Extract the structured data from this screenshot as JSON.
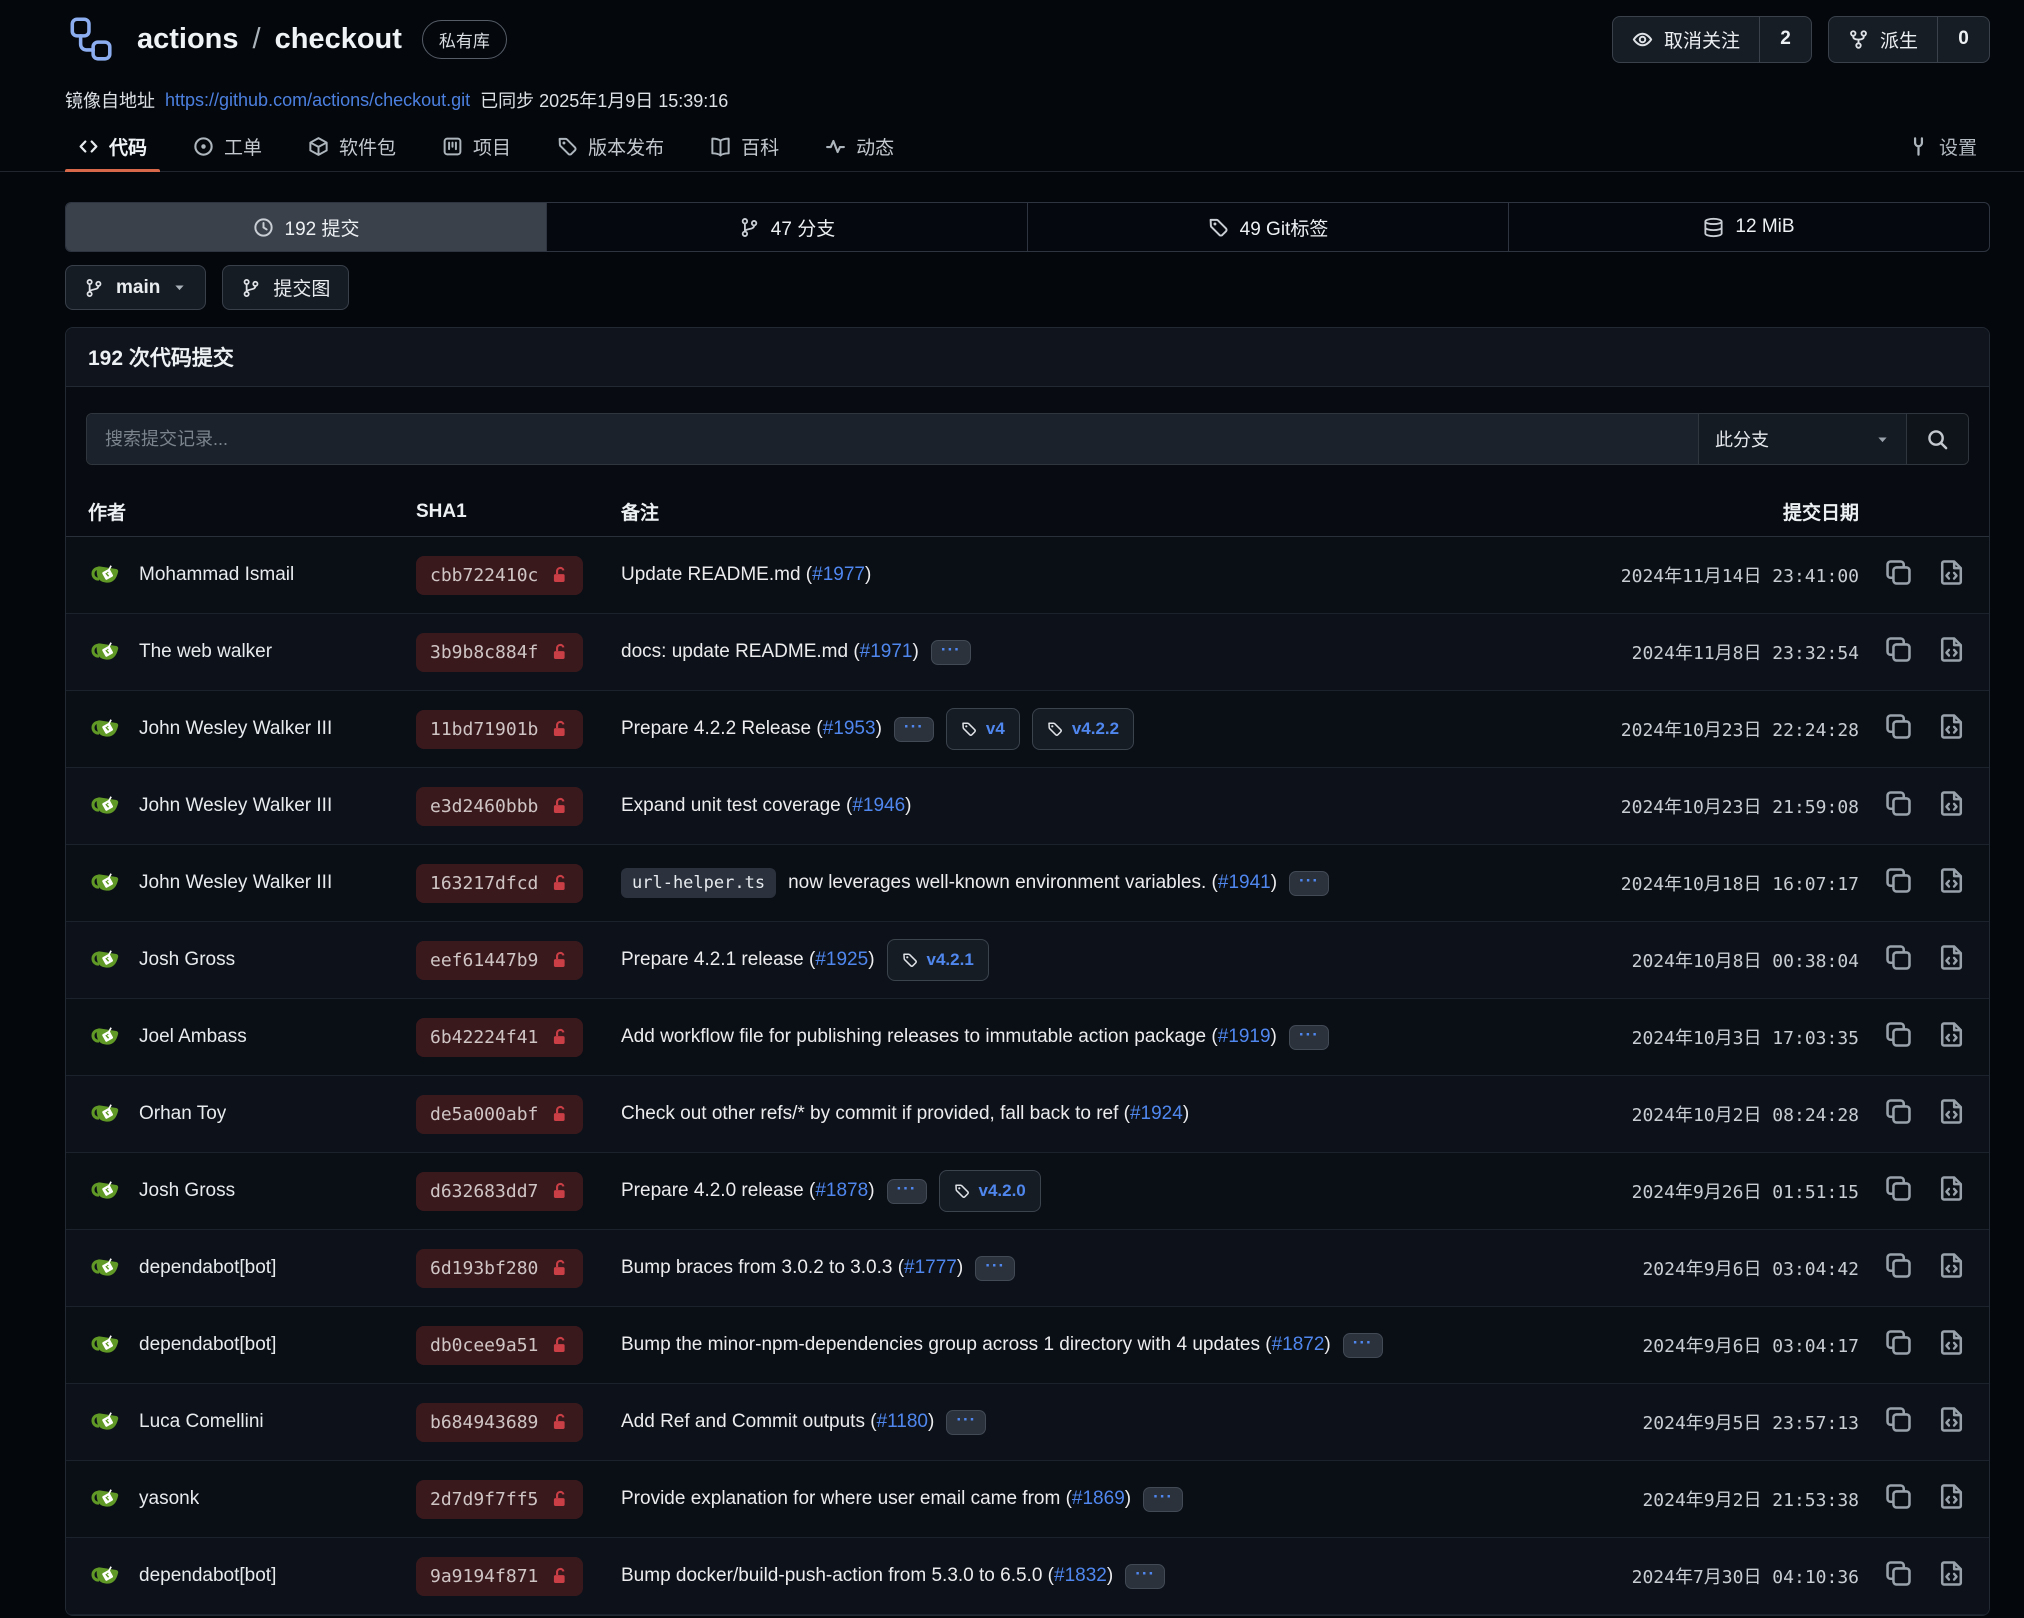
{
  "colors": {
    "accent_underline": "#d8684a",
    "link_blue": "#4f87ef",
    "mirror_link_blue": "#4c80e0",
    "sha_badge_bg": "#3a191d",
    "lock_red": "#ca3f46",
    "avatar_green": "#609926",
    "repo_logo_blue": "#8caef0"
  },
  "header": {
    "repo_icon": "mirror-logo-icon",
    "owner": "actions",
    "separator": "/",
    "repo": "checkout",
    "visibility_badge": "私有库",
    "watch_button": {
      "icon": "eye-icon",
      "label": "取消关注",
      "count": "2"
    },
    "fork_button": {
      "icon": "fork-icon",
      "label": "派生",
      "count": "0"
    },
    "mirror_line": {
      "prefix": "镜像自地址",
      "url": "https://github.com/actions/checkout.git",
      "synced": "已同步 2025年1月9日 15:39:16"
    }
  },
  "tabs": {
    "items": [
      {
        "name": "code",
        "icon": "code-icon",
        "label": "代码",
        "active": true
      },
      {
        "name": "issues",
        "icon": "issue-icon",
        "label": "工单",
        "active": false
      },
      {
        "name": "packages",
        "icon": "package-icon",
        "label": "软件包",
        "active": false
      },
      {
        "name": "projects",
        "icon": "project-icon",
        "label": "项目",
        "active": false
      },
      {
        "name": "releases",
        "icon": "tag-icon",
        "label": "版本发布",
        "active": false
      },
      {
        "name": "wiki",
        "icon": "book-icon",
        "label": "百科",
        "active": false
      },
      {
        "name": "activity",
        "icon": "activity-icon",
        "label": "动态",
        "active": false
      }
    ],
    "settings": {
      "name": "settings",
      "icon": "wrench-icon",
      "label": "设置"
    }
  },
  "stats": {
    "items": [
      {
        "name": "commits",
        "icon": "clock-icon",
        "label": "192 提交",
        "active": true
      },
      {
        "name": "branches",
        "icon": "branch-icon",
        "label": "47 分支",
        "active": false
      },
      {
        "name": "git-tags",
        "icon": "tag-icon",
        "label": "49 Git标签",
        "active": false
      },
      {
        "name": "repo-size",
        "icon": "database-icon",
        "label": "12 MiB",
        "active": false
      }
    ]
  },
  "toolbar": {
    "branch_button": {
      "icon": "branch-icon",
      "label": "main",
      "caret": "caret-down-icon"
    },
    "graph_button": {
      "icon": "branch-icon",
      "label": "提交图"
    }
  },
  "commits_panel": {
    "title": "192 次代码提交",
    "search": {
      "placeholder": "搜索提交记录...",
      "scope": "此分支",
      "scope_caret": "caret-down-icon",
      "search_icon": "search-icon"
    },
    "table_headers": {
      "author": "作者",
      "sha": "SHA1",
      "message": "备注",
      "date": "提交日期"
    },
    "ellipsis_label": "···",
    "commits": [
      {
        "author": "Mohammad Ismail",
        "sha": "cbb722410c",
        "code": null,
        "message": "Update README.md",
        "issue": "#1977",
        "ellipsis": false,
        "tags": [],
        "date": "2024年11月14日 23:41:00"
      },
      {
        "author": "The web walker",
        "sha": "3b9b8c884f",
        "code": null,
        "message": "docs: update README.md",
        "issue": "#1971",
        "ellipsis": true,
        "tags": [],
        "date": "2024年11月8日 23:32:54"
      },
      {
        "author": "John Wesley Walker III",
        "sha": "11bd71901b",
        "code": null,
        "message": "Prepare 4.2.2 Release",
        "issue": "#1953",
        "ellipsis": true,
        "tags": [
          "v4",
          "v4.2.2"
        ],
        "date": "2024年10月23日 22:24:28"
      },
      {
        "author": "John Wesley Walker III",
        "sha": "e3d2460bbb",
        "code": null,
        "message": "Expand unit test coverage",
        "issue": "#1946",
        "ellipsis": false,
        "tags": [],
        "date": "2024年10月23日 21:59:08"
      },
      {
        "author": "John Wesley Walker III",
        "sha": "163217dfcd",
        "code": "url-helper.ts",
        "message": "now leverages well-known environment variables.",
        "issue": "#1941",
        "ellipsis": true,
        "tags": [],
        "date": "2024年10月18日 16:07:17"
      },
      {
        "author": "Josh Gross",
        "sha": "eef61447b9",
        "code": null,
        "message": "Prepare 4.2.1 release",
        "issue": "#1925",
        "ellipsis": false,
        "tags": [
          "v4.2.1"
        ],
        "date": "2024年10月8日 00:38:04"
      },
      {
        "author": "Joel Ambass",
        "sha": "6b42224f41",
        "code": null,
        "message": "Add workflow file for publishing releases to immutable action package",
        "issue": "#1919",
        "ellipsis": true,
        "tags": [],
        "date": "2024年10月3日 17:03:35"
      },
      {
        "author": "Orhan Toy",
        "sha": "de5a000abf",
        "code": null,
        "message": "Check out other refs/* by commit if provided, fall back to ref",
        "issue": "#1924",
        "ellipsis": false,
        "tags": [],
        "date": "2024年10月2日 08:24:28"
      },
      {
        "author": "Josh Gross",
        "sha": "d632683dd7",
        "code": null,
        "message": "Prepare 4.2.0 release",
        "issue": "#1878",
        "ellipsis": true,
        "tags": [
          "v4.2.0"
        ],
        "date": "2024年9月26日 01:51:15"
      },
      {
        "author": "dependabot[bot]",
        "sha": "6d193bf280",
        "code": null,
        "message": "Bump braces from 3.0.2 to 3.0.3",
        "issue": "#1777",
        "ellipsis": true,
        "tags": [],
        "date": "2024年9月6日 03:04:42"
      },
      {
        "author": "dependabot[bot]",
        "sha": "db0cee9a51",
        "code": null,
        "message": "Bump the minor-npm-dependencies group across 1 directory with 4 updates",
        "issue": "#1872",
        "ellipsis": true,
        "tags": [],
        "date": "2024年9月6日 03:04:17"
      },
      {
        "author": "Luca Comellini",
        "sha": "b684943689",
        "code": null,
        "message": "Add Ref and Commit outputs",
        "issue": "#1180",
        "ellipsis": true,
        "tags": [],
        "date": "2024年9月5日 23:57:13"
      },
      {
        "author": "yasonk",
        "sha": "2d7d9f7ff5",
        "code": null,
        "message": "Provide explanation for where user email came from",
        "issue": "#1869",
        "ellipsis": true,
        "tags": [],
        "date": "2024年9月2日 21:53:38"
      },
      {
        "author": "dependabot[bot]",
        "sha": "9a9194f871",
        "code": null,
        "message": "Bump docker/build-push-action from 5.3.0 to 6.5.0",
        "issue": "#1832",
        "ellipsis": true,
        "tags": [],
        "date": "2024年7月30日 04:10:36"
      }
    ]
  }
}
